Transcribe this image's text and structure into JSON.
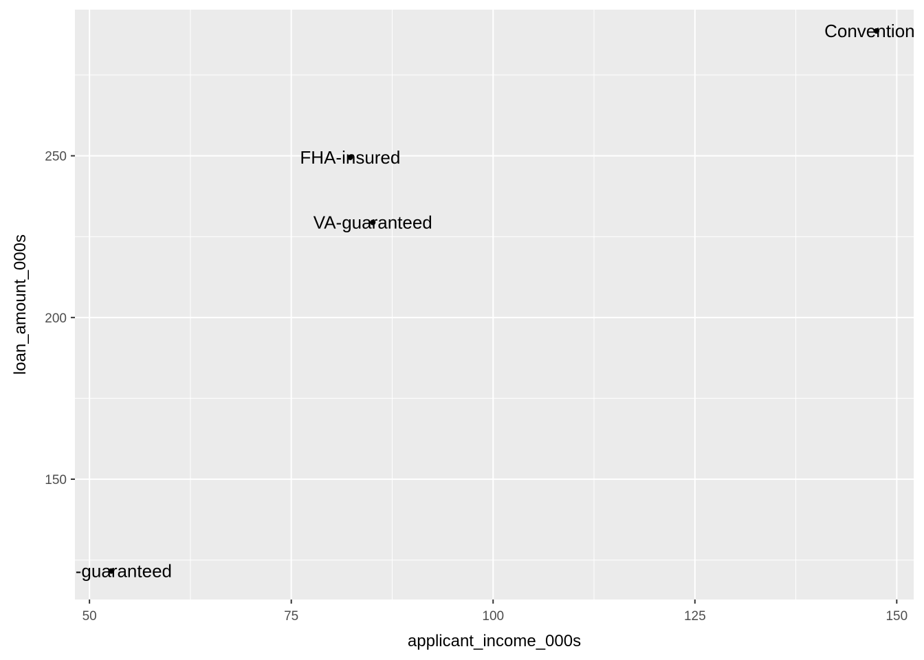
{
  "chart_data": {
    "type": "scatter",
    "title": "",
    "xlabel": "applicant_income_000s",
    "ylabel": "loan_amount_000s",
    "xlim": [
      48.2,
      152.1
    ],
    "ylim": [
      112.8,
      295.2
    ],
    "x_ticks": [
      50,
      75,
      100,
      125,
      150
    ],
    "x_tick_labels": [
      "50",
      "75",
      "100",
      "125",
      "150"
    ],
    "y_ticks": [
      150,
      200,
      250
    ],
    "y_tick_labels": [
      "150",
      "200",
      "250"
    ],
    "grid": true,
    "legend": "none",
    "colors": {
      "panel_background": "#ebebeb",
      "grid": "#ffffff",
      "point": "#000000",
      "tick_text": "#4d4d4d",
      "tick_mark": "#333333"
    },
    "points": [
      {
        "label": "Conventional",
        "x": 147.5,
        "y": 288.6
      },
      {
        "label": "FHA-insured",
        "x": 82.3,
        "y": 249.5
      },
      {
        "label": "VA-guaranteed",
        "x": 85.1,
        "y": 229.4
      },
      {
        "label": "HS-guaranteed",
        "x": 52.7,
        "y": 121.6
      }
    ]
  }
}
